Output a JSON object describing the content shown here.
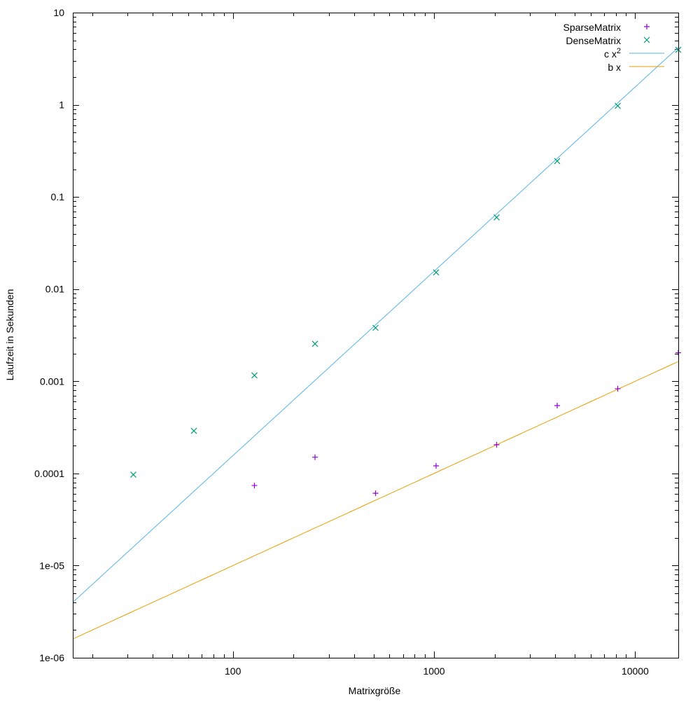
{
  "chart_data": {
    "type": "scatter",
    "title": "",
    "xlabel": "Matrixgröße",
    "ylabel": "Laufzeit in Sekunden",
    "xscale": "log",
    "yscale": "log",
    "xlim": [
      16,
      16384
    ],
    "ylim": [
      1e-06,
      10
    ],
    "grid": false,
    "legend_position": "top-right",
    "x_ticks": [
      {
        "v": 100,
        "label": "100"
      },
      {
        "v": 1000,
        "label": "1000"
      },
      {
        "v": 10000,
        "label": "10000"
      }
    ],
    "y_ticks": [
      {
        "v": 1e-06,
        "label": "1e-06"
      },
      {
        "v": 1e-05,
        "label": "1e-05"
      },
      {
        "v": 0.0001,
        "label": "0.0001"
      },
      {
        "v": 0.001,
        "label": "0.001"
      },
      {
        "v": 0.01,
        "label": "0.01"
      },
      {
        "v": 0.1,
        "label": "0.1"
      },
      {
        "v": 1,
        "label": "1"
      },
      {
        "v": 10,
        "label": "10"
      }
    ],
    "series": [
      {
        "name": "SparseMatrix",
        "kind": "points",
        "marker": "plus",
        "color": "#9400d3",
        "x": [
          128,
          256,
          512,
          1024,
          2048,
          4096,
          8192,
          16384
        ],
        "y": [
          7.4e-05,
          0.00015,
          6.1e-05,
          0.000121,
          0.000205,
          0.000545,
          0.00083,
          0.00204
        ]
      },
      {
        "name": "DenseMatrix",
        "kind": "points",
        "marker": "cross",
        "color": "#009e73",
        "x": [
          32,
          64,
          128,
          256,
          512,
          1024,
          2048,
          4096,
          8192,
          16384
        ],
        "y": [
          9.7e-05,
          0.00029,
          0.00116,
          0.00255,
          0.0038,
          0.0152,
          0.06,
          0.245,
          0.975,
          3.95
        ]
      },
      {
        "name": "c x²",
        "label_base": "c x",
        "label_sup": "2",
        "kind": "line",
        "color": "#56b4e9",
        "formula": "c*x^2",
        "c": 1.56e-08
      },
      {
        "name": "b x",
        "kind": "line",
        "color": "#e69f00",
        "formula": "b*x",
        "b": 1e-07
      }
    ]
  }
}
